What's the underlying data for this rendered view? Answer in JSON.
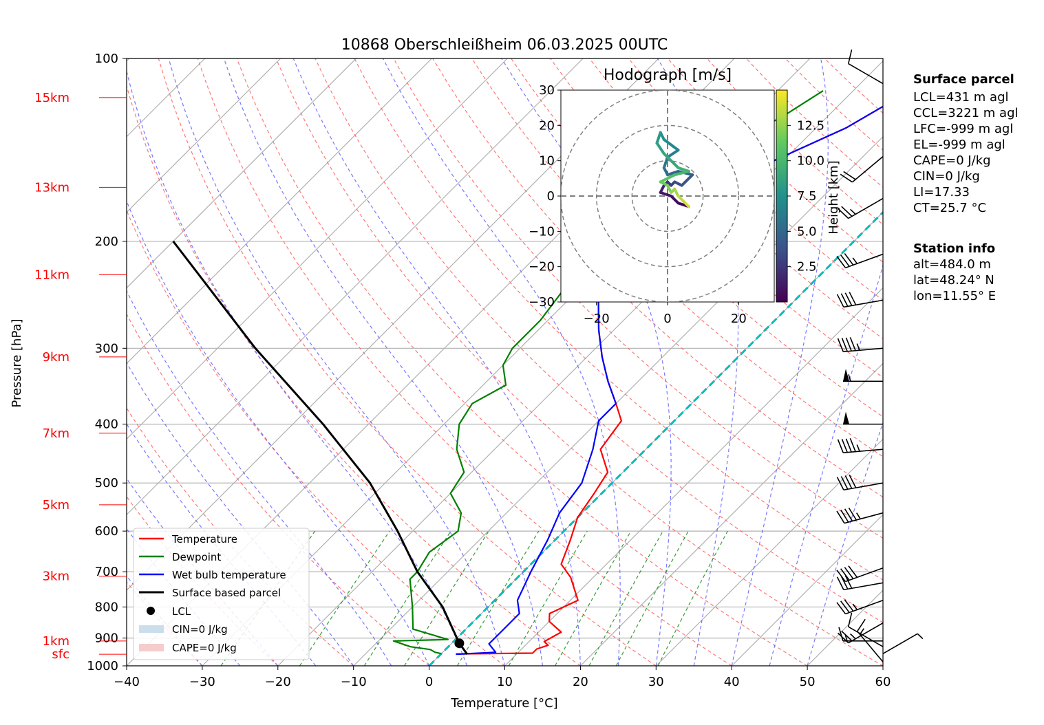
{
  "chart_data": {
    "type": "skew-t",
    "title": "10868 Oberschleißheim 06.03.2025 00UTC",
    "xlabel": "Temperature [°C]",
    "ylabel": "Pressure [hPa]",
    "xlim": [
      -40,
      60
    ],
    "ylim_hpa": [
      1000,
      100
    ],
    "x_ticks": [
      -40,
      -30,
      -20,
      -10,
      0,
      10,
      20,
      30,
      40,
      50,
      60
    ],
    "p_ticks": [
      1000,
      900,
      800,
      700,
      600,
      500,
      400,
      300,
      200,
      100
    ],
    "height_labels": [
      {
        "label": "sfc",
        "p": 957
      },
      {
        "label": "1km",
        "p": 910
      },
      {
        "label": "3km",
        "p": 712
      },
      {
        "label": "5km",
        "p": 543
      },
      {
        "label": "7km",
        "p": 414
      },
      {
        "label": "9km",
        "p": 310
      },
      {
        "label": "11km",
        "p": 227
      },
      {
        "label": "13km",
        "p": 163
      },
      {
        "label": "15km",
        "p": 116
      }
    ],
    "series": [
      {
        "name": "Temperature",
        "color": "#ff0000",
        "points": [
          [
            2,
            956
          ],
          [
            12,
            953
          ],
          [
            12,
            938
          ],
          [
            13,
            925
          ],
          [
            12,
            912
          ],
          [
            13,
            880
          ],
          [
            10,
            845
          ],
          [
            9,
            820
          ],
          [
            11,
            780
          ],
          [
            7,
            715
          ],
          [
            4,
            680
          ],
          [
            2,
            620
          ],
          [
            0,
            570
          ],
          [
            -1,
            520
          ],
          [
            -2,
            480
          ],
          [
            -6,
            440
          ],
          [
            -7,
            395
          ],
          [
            -10,
            370
          ],
          [
            -14,
            340
          ],
          [
            -18,
            310
          ],
          [
            -22,
            280
          ],
          [
            -26,
            250
          ],
          [
            -30,
            220
          ],
          [
            -30,
            200
          ],
          [
            -28,
            180
          ],
          [
            -25,
            165
          ],
          [
            -22,
            150
          ],
          [
            -16,
            130
          ],
          [
            -14,
            120
          ],
          [
            -8,
            115
          ]
        ]
      },
      {
        "name": "Dewpoint",
        "color": "#008000",
        "points": [
          [
            0,
            955
          ],
          [
            -1,
            950
          ],
          [
            -2,
            940
          ],
          [
            -5,
            930
          ],
          [
            -8,
            910
          ],
          [
            -1,
            905
          ],
          [
            -7,
            870
          ],
          [
            -10,
            800
          ],
          [
            -14,
            720
          ],
          [
            -14,
            700
          ],
          [
            -15,
            650
          ],
          [
            -14,
            600
          ],
          [
            -16,
            560
          ],
          [
            -20,
            520
          ],
          [
            -21,
            480
          ],
          [
            -25,
            440
          ],
          [
            -28,
            400
          ],
          [
            -29,
            370
          ],
          [
            -27,
            345
          ],
          [
            -30,
            320
          ],
          [
            -31,
            300
          ],
          [
            -31,
            270
          ],
          [
            -32,
            240
          ],
          [
            -29,
            220
          ],
          [
            -30,
            200
          ],
          [
            -32,
            180
          ],
          [
            -35,
            160
          ],
          [
            -30,
            140
          ],
          [
            -26,
            125
          ],
          [
            -24,
            113
          ]
        ]
      },
      {
        "name": "Wet bulb temperature",
        "color": "#0000ff",
        "points": [
          [
            2,
            957
          ],
          [
            7,
            950
          ],
          [
            5,
            920
          ],
          [
            5,
            870
          ],
          [
            5,
            820
          ],
          [
            3,
            780
          ],
          [
            1,
            700
          ],
          [
            -1,
            620
          ],
          [
            -3,
            560
          ],
          [
            -4,
            500
          ],
          [
            -7,
            440
          ],
          [
            -10,
            395
          ],
          [
            -10,
            370
          ],
          [
            -14,
            340
          ],
          [
            -18,
            310
          ],
          [
            -22,
            280
          ],
          [
            -26,
            250
          ],
          [
            -30,
            220
          ],
          [
            -30,
            200
          ],
          [
            -28,
            180
          ],
          [
            -25,
            165
          ],
          [
            -22,
            150
          ],
          [
            -16,
            130
          ],
          [
            -14,
            120
          ],
          [
            -8,
            115
          ]
        ]
      },
      {
        "name": "Surface based parcel",
        "color": "#000000",
        "points": [
          [
            3.5,
            957
          ],
          [
            1,
            918
          ],
          [
            -6,
            800
          ],
          [
            -14,
            700
          ],
          [
            -22,
            600
          ],
          [
            -32,
            500
          ],
          [
            -46,
            400
          ],
          [
            -65,
            300
          ],
          [
            -90,
            200
          ]
        ]
      }
    ],
    "lcl": {
      "name": "LCL",
      "t": 1,
      "p": 918
    },
    "legend": {
      "placement": "lower-left",
      "items": [
        "Temperature",
        "Dewpoint",
        "Wet bulb temperature",
        "Surface based parcel",
        "LCL",
        "CIN=0 J/kg",
        "CAPE=0 J/kg"
      ]
    },
    "freezing_line_t": 0,
    "wind_barb_colors": {
      "flag": "#000000"
    },
    "hodograph": {
      "title": "Hodograph [m/s]",
      "xlim": [
        -30,
        30
      ],
      "ylim": [
        -30,
        30
      ],
      "ticks": [
        -30,
        -20,
        -10,
        0,
        10,
        20,
        30
      ],
      "x_ticks": [
        -20,
        0,
        20
      ],
      "rings": [
        10,
        20,
        30
      ],
      "colorbar_label": "Height [km]",
      "colorbar_ticks": [
        "2.5",
        "5.0",
        "7.5",
        "10.0",
        "12.5"
      ],
      "colorbar_range_km": [
        0,
        15
      ],
      "points_uvh": [
        [
          6,
          -3,
          0.1
        ],
        [
          3,
          -2,
          0.5
        ],
        [
          1,
          0,
          1
        ],
        [
          -2,
          1,
          1.5
        ],
        [
          -1,
          3,
          2
        ],
        [
          0,
          4,
          2.5
        ],
        [
          1,
          3,
          3
        ],
        [
          2,
          4,
          3.5
        ],
        [
          4,
          3,
          4
        ],
        [
          7,
          6,
          4.5
        ],
        [
          3,
          7,
          5
        ],
        [
          0,
          6,
          5.5
        ],
        [
          -1,
          8,
          6
        ],
        [
          0,
          11,
          6.5
        ],
        [
          3,
          13,
          7
        ],
        [
          -1,
          16,
          7.5
        ],
        [
          -2,
          18,
          8
        ],
        [
          -3,
          15,
          8.5
        ],
        [
          -1,
          12,
          9
        ],
        [
          3,
          8,
          9.5
        ],
        [
          6,
          7,
          10
        ],
        [
          2,
          6,
          10.5
        ],
        [
          0,
          5,
          11
        ],
        [
          -2,
          4,
          11.5
        ],
        [
          0,
          3,
          12
        ],
        [
          1,
          1,
          12.5
        ],
        [
          2,
          2,
          13
        ],
        [
          3,
          0,
          13.5
        ],
        [
          5,
          -2,
          14
        ],
        [
          6,
          -3,
          14.5
        ]
      ]
    },
    "wind_barbs": [
      {
        "p": 985,
        "speed_kt": 15,
        "dir": 320
      },
      {
        "p": 955,
        "speed_kt": 5,
        "dir": 60
      },
      {
        "p": 930,
        "speed_kt": 10,
        "dir": 300
      },
      {
        "p": 910,
        "speed_kt": 15,
        "dir": 270
      },
      {
        "p": 850,
        "speed_kt": 25,
        "dir": 240
      },
      {
        "p": 780,
        "speed_kt": 35,
        "dir": 250
      },
      {
        "p": 730,
        "speed_kt": 30,
        "dir": 260
      },
      {
        "p": 690,
        "speed_kt": 40,
        "dir": 250
      },
      {
        "p": 560,
        "speed_kt": 45,
        "dir": 255
      },
      {
        "p": 500,
        "speed_kt": 40,
        "dir": 260
      },
      {
        "p": 440,
        "speed_kt": 45,
        "dir": 265
      },
      {
        "p": 400,
        "speed_kt": 50,
        "dir": 270
      },
      {
        "p": 340,
        "speed_kt": 55,
        "dir": 270
      },
      {
        "p": 300,
        "speed_kt": 45,
        "dir": 265
      },
      {
        "p": 250,
        "speed_kt": 40,
        "dir": 260
      },
      {
        "p": 210,
        "speed_kt": 35,
        "dir": 250
      },
      {
        "p": 170,
        "speed_kt": 25,
        "dir": 240
      },
      {
        "p": 145,
        "speed_kt": 20,
        "dir": 230
      },
      {
        "p": 110,
        "speed_kt": 10,
        "dir": 300
      }
    ]
  },
  "side_panel": {
    "surface_title": "Surface parcel",
    "surface_lines": [
      "LCL=431 m agl",
      "CCL=3221 m agl",
      "LFC=-999 m agl",
      "EL=-999 m agl",
      "CAPE=0 J/kg",
      "CIN=0 J/kg",
      "LI=17.33",
      "CT=25.7 °C"
    ],
    "station_title": "Station info",
    "station_lines": [
      "alt=484.0 m",
      "lat=48.24° N",
      "lon=11.55° E"
    ]
  }
}
